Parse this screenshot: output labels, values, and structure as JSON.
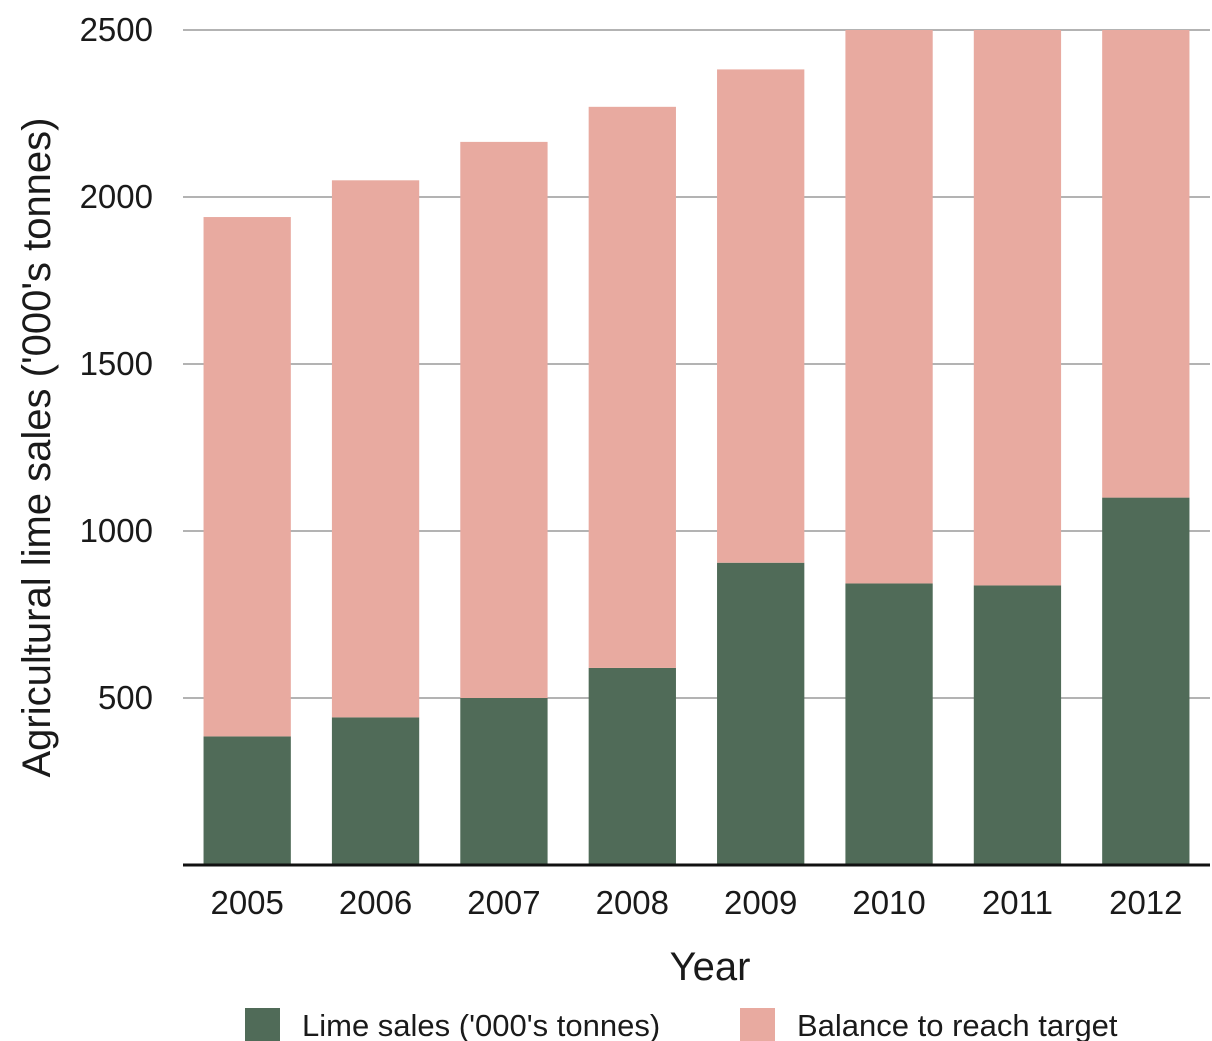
{
  "chart_data": {
    "type": "bar",
    "stacked": true,
    "title": "",
    "xlabel": "Year",
    "ylabel": "Agricultural lime sales ('000's tonnes)",
    "categories": [
      "2005",
      "2006",
      "2007",
      "2008",
      "2009",
      "2010",
      "2011",
      "2012"
    ],
    "series": [
      {
        "name": "Lime sales ('000's tonnes)",
        "color": "#506b58",
        "values": [
          385,
          442,
          500,
          590,
          905,
          843,
          837,
          1100
        ]
      },
      {
        "name": "Balance to reach target",
        "color": "#e8aaa0",
        "values": [
          1555,
          1608,
          1665,
          1680,
          1477,
          1657,
          1663,
          1400
        ]
      }
    ],
    "ylim": [
      0,
      2500
    ],
    "yticks": [
      500,
      1000,
      1500,
      2000,
      2500
    ],
    "grid": true,
    "legend_position": "bottom"
  }
}
